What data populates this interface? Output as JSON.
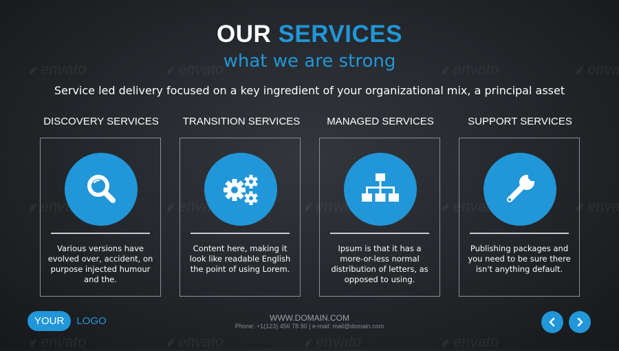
{
  "header": {
    "title_part1": "OUR",
    "title_part2": "SERVICES",
    "subtitle": "what we are strong",
    "intro": "Service led delivery focused on a key ingredient of your organizational mix, a principal asset"
  },
  "watermark": {
    "text": "envato"
  },
  "services": [
    {
      "title": "DISCOVERY SERVICES",
      "icon": "magnifier-icon",
      "description": "Various versions have evolved over, accident, on purpose injected humour and the."
    },
    {
      "title": "TRANSITION SERVICES",
      "icon": "gears-icon",
      "description": "Content here, making it look like readable English the point of using Lorem."
    },
    {
      "title": "MANAGED SERVICES",
      "icon": "hierarchy-icon",
      "description": "Ipsum is that it has a more-or-less normal distribution of letters, as opposed to using."
    },
    {
      "title": "SUPPORT SERVICES",
      "icon": "wrench-icon",
      "description": "Publishing packages and you need to be sure there isn't anything default."
    }
  ],
  "footer": {
    "logo_pill": "YOUR",
    "logo_text": "LOGO",
    "domain": "WWW.DOMAIN.COM",
    "contact": "Phone: +1(123) 456 78 90 | e-mail: mail@domain.com"
  },
  "nav": {
    "prev_icon": "chevron-left-icon",
    "next_icon": "chevron-right-icon"
  },
  "colors": {
    "accent": "#2196d8",
    "background": "#26292d",
    "card_border": "#8c9097"
  }
}
